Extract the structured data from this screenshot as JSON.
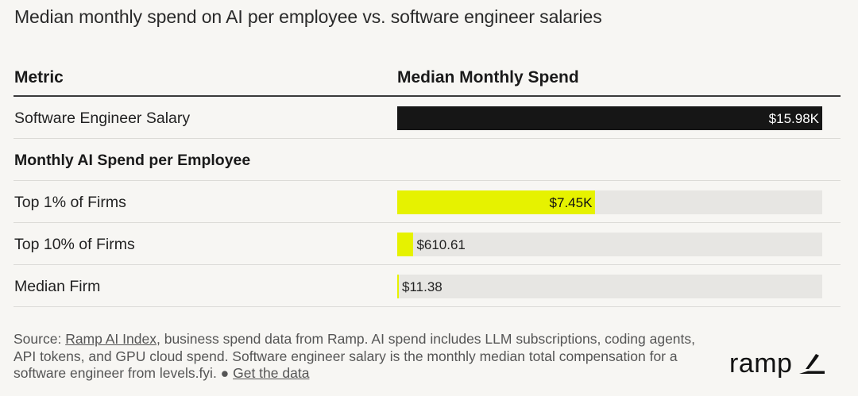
{
  "title": "Median monthly spend on AI per employee vs. software engineer salaries",
  "colors": {
    "dark_bar": "#161616",
    "accent_bar": "#e6f200",
    "track": "#e7e6e3"
  },
  "chart_data": {
    "type": "bar",
    "orientation": "horizontal",
    "title": "Median monthly spend on AI per employee vs. software engineer salaries",
    "columns": [
      "Metric",
      "Median Monthly Spend"
    ],
    "xlim": [
      0,
      15980
    ],
    "rows": [
      {
        "label": "Software Engineer Salary",
        "value": 15980,
        "display": "$15.98K",
        "color": "#161616",
        "section": false
      },
      {
        "label": "Monthly AI Spend per Employee",
        "value": null,
        "display": "",
        "color": "",
        "section": true
      },
      {
        "label": "Top 1% of Firms",
        "value": 7450,
        "display": "$7.45K",
        "color": "#e6f200",
        "section": false
      },
      {
        "label": "Top 10% of Firms",
        "value": 610.61,
        "display": "$610.61",
        "color": "#e6f200",
        "section": false
      },
      {
        "label": "Median Firm",
        "value": 11.38,
        "display": "$11.38",
        "color": "#e6f200",
        "section": false
      }
    ]
  },
  "footer": {
    "source_prefix": "Source: ",
    "source_link": "Ramp AI Index",
    "source_text": ", business spend data from Ramp. AI spend includes LLM subscriptions, coding agents, API tokens, and GPU cloud spend. Software engineer salary is the monthly median total compensation for a software engineer from levels.fyi. ● ",
    "data_link": "Get the data"
  },
  "logo": {
    "text": "ramp",
    "icon": "ramp-logo-icon"
  }
}
